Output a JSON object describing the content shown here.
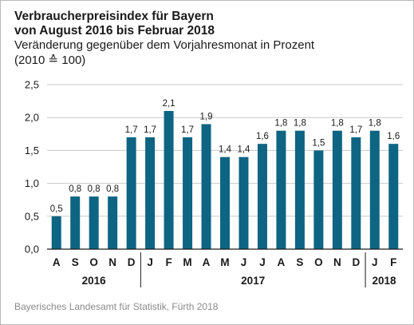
{
  "header": {
    "title_line1": "Verbraucherpreisindex für Bayern",
    "title_line2": "von August 2016 bis Februar 2018",
    "subtitle_line1": "Veränderung gegenüber dem Vorjahresmonat in Prozent",
    "subtitle_line2": "(2010 ≙ 100)"
  },
  "source": "Bayerisches Landesamt für Statistik, Fürth 2018",
  "colors": {
    "bar": "#0e6483",
    "axis": "#1a1a1a",
    "grid": "#c8c8c8"
  },
  "chart_data": {
    "type": "bar",
    "categories": [
      "A",
      "S",
      "O",
      "N",
      "D",
      "J",
      "F",
      "M",
      "A",
      "M",
      "J",
      "J",
      "A",
      "S",
      "O",
      "N",
      "D",
      "J",
      "F"
    ],
    "values": [
      0.5,
      0.8,
      0.8,
      0.8,
      1.7,
      1.7,
      2.1,
      1.7,
      1.9,
      1.4,
      1.4,
      1.6,
      1.8,
      1.8,
      1.5,
      1.8,
      1.7,
      1.8,
      1.6
    ],
    "value_labels": [
      "0,5",
      "0,8",
      "0,8",
      "0,8",
      "1,7",
      "1,7",
      "2,1",
      "1,7",
      "1,9",
      "1,4",
      "1,4",
      "1,6",
      "1,8",
      "1,8",
      "1,5",
      "1,8",
      "1,7",
      "1,8",
      "1,6"
    ],
    "years": [
      {
        "label": "2016",
        "start": 0,
        "end": 4
      },
      {
        "label": "2017",
        "start": 5,
        "end": 16
      },
      {
        "label": "2018",
        "start": 17,
        "end": 18
      }
    ],
    "ylim": [
      0,
      2.5
    ],
    "yticks": [
      0,
      0.5,
      1.0,
      1.5,
      2.0,
      2.5
    ],
    "ytick_labels": [
      "0,0",
      "0,5",
      "1,0",
      "1,5",
      "2,0",
      "2,5"
    ],
    "grid": true
  }
}
